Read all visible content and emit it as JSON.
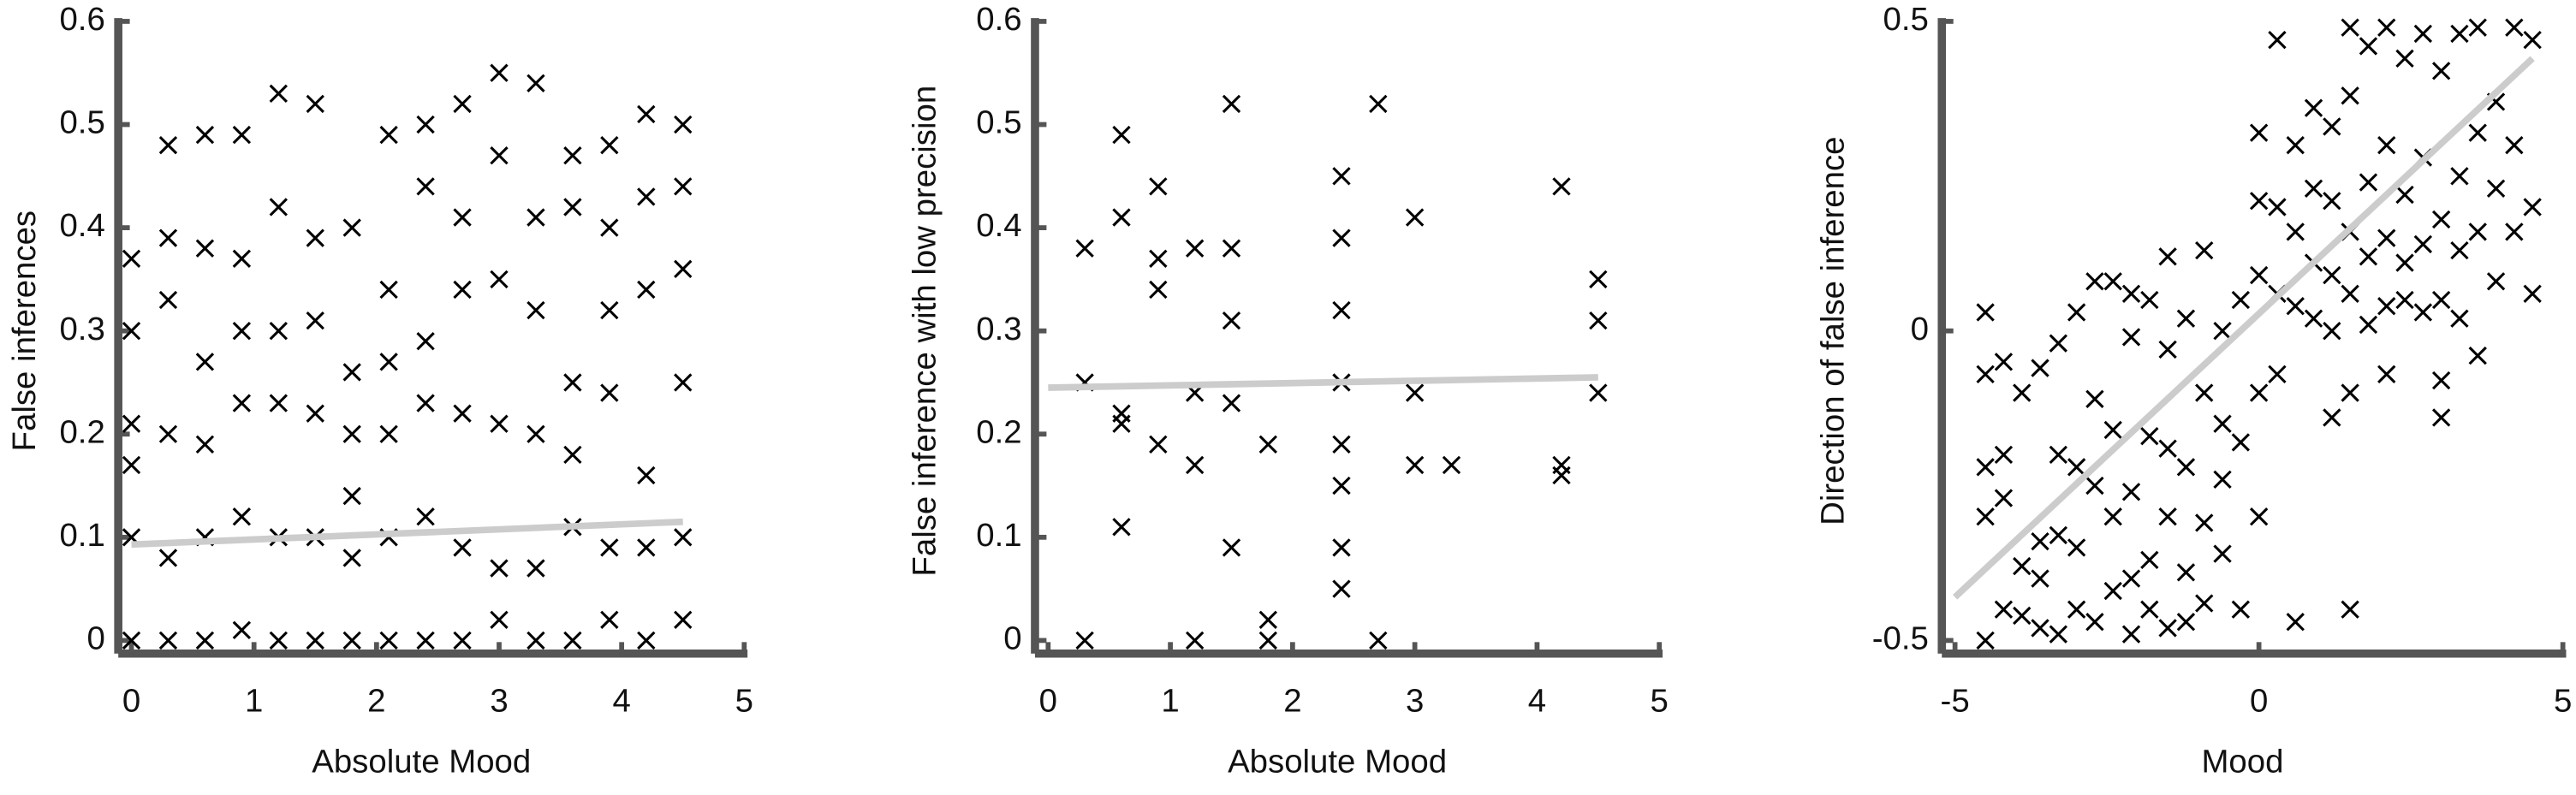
{
  "chart_data": [
    {
      "type": "scatter",
      "xlabel": "Absolute Mood",
      "ylabel": "False inferences",
      "xlim": [
        0,
        5
      ],
      "ylim": [
        0,
        0.6
      ],
      "xticks": [
        0,
        1,
        2,
        3,
        4,
        5
      ],
      "yticks": [
        0,
        0.1,
        0.2,
        0.3,
        0.4,
        0.5,
        0.6
      ],
      "color": "#000000",
      "fit_color": "#cccccc",
      "x": [
        0,
        0,
        0,
        0,
        0,
        0,
        0.3,
        0.3,
        0.3,
        0.3,
        0.3,
        0.3,
        0.6,
        0.6,
        0.6,
        0.6,
        0.6,
        0.6,
        0.9,
        0.9,
        0.9,
        0.9,
        0.9,
        0.9,
        1.2,
        1.2,
        1.2,
        1.2,
        1.2,
        1.2,
        1.5,
        1.5,
        1.5,
        1.5,
        1.5,
        1.5,
        1.8,
        1.8,
        1.8,
        1.8,
        1.8,
        1.8,
        2.1,
        2.1,
        2.1,
        2.1,
        2.1,
        2.1,
        2.4,
        2.4,
        2.4,
        2.4,
        2.4,
        2.4,
        2.7,
        2.7,
        2.7,
        2.7,
        2.7,
        2.7,
        3.0,
        3.0,
        3.0,
        3.0,
        3.0,
        3.0,
        3.3,
        3.3,
        3.3,
        3.3,
        3.3,
        3.3,
        3.6,
        3.6,
        3.6,
        3.6,
        3.6,
        3.6,
        3.9,
        3.9,
        3.9,
        3.9,
        3.9,
        3.9,
        4.2,
        4.2,
        4.2,
        4.2,
        4.2,
        4.2,
        4.5,
        4.5,
        4.5,
        4.5,
        4.5,
        4.5
      ],
      "y": [
        0,
        0.1,
        0.17,
        0.21,
        0.3,
        0.37,
        0,
        0.08,
        0.2,
        0.33,
        0.39,
        0.48,
        0,
        0.1,
        0.19,
        0.27,
        0.38,
        0.49,
        0.01,
        0.12,
        0.23,
        0.3,
        0.37,
        0.49,
        0,
        0.1,
        0.23,
        0.3,
        0.42,
        0.53,
        0,
        0.1,
        0.22,
        0.31,
        0.39,
        0.52,
        0,
        0.08,
        0.14,
        0.2,
        0.26,
        0.4,
        0,
        0.1,
        0.2,
        0.27,
        0.34,
        0.49,
        0,
        0.12,
        0.23,
        0.29,
        0.44,
        0.5,
        0,
        0.09,
        0.22,
        0.34,
        0.41,
        0.52,
        0.02,
        0.07,
        0.21,
        0.35,
        0.47,
        0.55,
        0,
        0.07,
        0.2,
        0.32,
        0.41,
        0.54,
        0,
        0.11,
        0.18,
        0.25,
        0.42,
        0.47,
        0.02,
        0.09,
        0.24,
        0.32,
        0.4,
        0.48,
        0,
        0.09,
        0.16,
        0.34,
        0.43,
        0.51,
        0.02,
        0.1,
        0.25,
        0.36,
        0.44,
        0.5
      ],
      "fit": {
        "x": [
          0,
          4.5
        ],
        "y": [
          0.093,
          0.115
        ]
      }
    },
    {
      "type": "scatter",
      "xlabel": "Absolute Mood",
      "ylabel": "False inference with low precision",
      "xlim": [
        0,
        5
      ],
      "ylim": [
        0,
        0.6
      ],
      "xticks": [
        0,
        1,
        2,
        3,
        4,
        5
      ],
      "yticks": [
        0,
        0.1,
        0.2,
        0.3,
        0.4,
        0.5,
        0.6
      ],
      "color": "#000000",
      "fit_color": "#cccccc",
      "x": [
        0.3,
        0.3,
        0.3,
        0.6,
        0.6,
        0.6,
        0.6,
        0.6,
        0.9,
        0.9,
        0.9,
        0.9,
        1.2,
        1.2,
        1.2,
        1.2,
        1.5,
        1.5,
        1.5,
        1.5,
        1.5,
        1.8,
        1.8,
        1.8,
        2.4,
        2.4,
        2.4,
        2.4,
        2.4,
        2.4,
        2.4,
        2.4,
        2.7,
        2.7,
        3.0,
        3.0,
        3.0,
        3.3,
        4.2,
        4.2,
        4.2,
        4.5,
        4.5,
        4.5
      ],
      "y": [
        0,
        0.38,
        0.25,
        0.49,
        0.41,
        0.21,
        0.22,
        0.11,
        0.44,
        0.37,
        0.34,
        0.19,
        0.38,
        0.24,
        0.17,
        0,
        0.52,
        0.38,
        0.31,
        0.23,
        0.09,
        0.19,
        0.02,
        0,
        0.45,
        0.39,
        0.32,
        0.25,
        0.19,
        0.15,
        0.09,
        0.05,
        0.52,
        0,
        0.41,
        0.24,
        0.17,
        0.17,
        0.44,
        0.17,
        0.16,
        0.35,
        0.31,
        0.24
      ],
      "fit": {
        "x": [
          0,
          4.5
        ],
        "y": [
          0.245,
          0.255
        ]
      }
    },
    {
      "type": "scatter",
      "xlabel": "Mood",
      "ylabel": "Direction of false inference",
      "xlim": [
        -5,
        5
      ],
      "ylim": [
        -0.5,
        0.5
      ],
      "xticks": [
        -5,
        0,
        5
      ],
      "yticks": [
        -0.5,
        0,
        0.5
      ],
      "color": "#000000",
      "fit_color": "#cccccc",
      "x": [
        -4.5,
        -4.5,
        -4.5,
        -4.5,
        -4.5,
        -4.2,
        -4.2,
        -4.2,
        -4.2,
        -3.9,
        -3.9,
        -3.9,
        -3.6,
        -3.6,
        -3.6,
        -3.6,
        -3.3,
        -3.3,
        -3.3,
        -3.3,
        -3.0,
        -3.0,
        -3.0,
        -3.0,
        -2.7,
        -2.7,
        -2.7,
        -2.7,
        -2.4,
        -2.4,
        -2.4,
        -2.4,
        -2.1,
        -2.1,
        -2.1,
        -2.1,
        -2.1,
        -1.8,
        -1.8,
        -1.8,
        -1.8,
        -1.5,
        -1.5,
        -1.5,
        -1.5,
        -1.5,
        -1.2,
        -1.2,
        -1.2,
        -1.2,
        -0.9,
        -0.9,
        -0.9,
        -0.9,
        -0.6,
        -0.6,
        -0.6,
        -0.6,
        -0.3,
        -0.3,
        -0.3,
        0,
        0,
        0,
        0,
        0,
        0.3,
        0.3,
        0.3,
        0.3,
        0.6,
        0.6,
        0.6,
        0.6,
        0.9,
        0.9,
        0.9,
        0.9,
        1.2,
        1.2,
        1.2,
        1.2,
        1.2,
        1.5,
        1.5,
        1.5,
        1.5,
        1.5,
        1.5,
        1.8,
        1.8,
        1.8,
        1.8,
        2.1,
        2.1,
        2.1,
        2.1,
        2.1,
        2.4,
        2.4,
        2.4,
        2.4,
        2.7,
        2.7,
        2.7,
        2.7,
        3.0,
        3.0,
        3.0,
        3.0,
        3.0,
        3.3,
        3.3,
        3.3,
        3.3,
        3.6,
        3.6,
        3.6,
        3.6,
        3.9,
        3.9,
        3.9,
        4.2,
        4.2,
        4.2,
        4.5,
        4.5,
        4.5
      ],
      "y": [
        -0.5,
        -0.3,
        -0.22,
        -0.07,
        0.03,
        -0.45,
        -0.27,
        -0.2,
        -0.05,
        -0.46,
        -0.38,
        -0.1,
        -0.48,
        -0.4,
        -0.34,
        -0.06,
        -0.49,
        -0.33,
        -0.2,
        -0.02,
        -0.45,
        -0.35,
        -0.22,
        0.03,
        -0.47,
        -0.25,
        -0.11,
        0.08,
        -0.42,
        -0.3,
        -0.16,
        0.08,
        -0.49,
        -0.4,
        -0.26,
        -0.01,
        0.06,
        -0.45,
        -0.37,
        -0.17,
        0.05,
        -0.48,
        -0.3,
        -0.19,
        -0.03,
        0.12,
        -0.47,
        -0.39,
        -0.22,
        0.02,
        -0.44,
        -0.31,
        -0.1,
        0.13,
        -0.36,
        -0.24,
        -0.15,
        0.0,
        -0.45,
        -0.18,
        0.05,
        -0.3,
        -0.1,
        0.09,
        0.21,
        0.32,
        -0.07,
        0.06,
        0.2,
        0.47,
        -0.47,
        0.04,
        0.16,
        0.3,
        0.02,
        0.11,
        0.23,
        0.36,
        -0.14,
        0.0,
        0.09,
        0.21,
        0.33,
        -0.45,
        -0.1,
        0.06,
        0.16,
        0.38,
        0.49,
        0.01,
        0.12,
        0.24,
        0.46,
        -0.07,
        0.04,
        0.15,
        0.3,
        0.49,
        0.05,
        0.11,
        0.22,
        0.44,
        0.03,
        0.14,
        0.28,
        0.48,
        -0.14,
        -0.08,
        0.05,
        0.18,
        0.42,
        0.02,
        0.13,
        0.25,
        0.48,
        -0.04,
        0.16,
        0.32,
        0.49,
        0.08,
        0.23,
        0.37,
        0.16,
        0.3,
        0.49,
        0.06,
        0.2,
        0.47
      ],
      "fit": {
        "x": [
          -5,
          4.5
        ],
        "y": [
          -0.43,
          0.44
        ]
      }
    }
  ]
}
